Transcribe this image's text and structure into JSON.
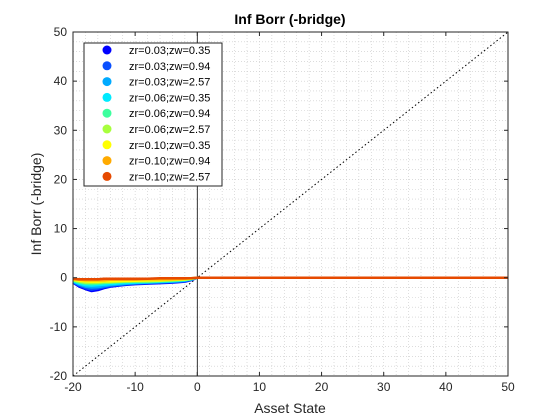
{
  "chart_data": {
    "type": "line",
    "title": "Inf Borr (-bridge)",
    "xlabel": "Asset State",
    "ylabel": "Inf Borr (-bridge)",
    "xlim": [
      -20,
      50
    ],
    "ylim": [
      -20,
      50
    ],
    "xticks": [
      -20,
      -10,
      0,
      10,
      20,
      30,
      40,
      50
    ],
    "yticks": [
      -20,
      -10,
      0,
      10,
      20,
      30,
      40,
      50
    ],
    "grid": "minor dotted",
    "legend_position": "top-left",
    "reference_lines": {
      "diagonal": "y = x (dotted)",
      "vertical": "x = 0 (solid)"
    },
    "series": [
      {
        "name": "zr=0.03;zw=0.35",
        "color": "#0000ff",
        "x": [
          -20,
          -19,
          -18,
          -17,
          -16,
          -15,
          -14,
          -12,
          -10,
          -8,
          -6,
          -4,
          -2,
          -1,
          0,
          10,
          20,
          30,
          40,
          50
        ],
        "y": [
          -1.0,
          -1.8,
          -2.3,
          -2.7,
          -2.5,
          -2.1,
          -1.8,
          -1.5,
          -1.3,
          -1.2,
          -1.1,
          -1.0,
          -0.8,
          -0.5,
          0,
          0,
          0,
          0,
          0,
          0
        ]
      },
      {
        "name": "zr=0.03;zw=0.94",
        "color": "#0a50ff",
        "x": [
          -20,
          -19,
          -18,
          -17,
          -16,
          -15,
          -14,
          -12,
          -10,
          -8,
          -6,
          -4,
          -2,
          -1,
          0,
          10,
          20,
          30,
          40,
          50
        ],
        "y": [
          -0.9,
          -1.6,
          -2.1,
          -2.4,
          -2.2,
          -1.9,
          -1.7,
          -1.4,
          -1.2,
          -1.1,
          -1.0,
          -0.9,
          -0.7,
          -0.4,
          0,
          0,
          0,
          0,
          0,
          0
        ]
      },
      {
        "name": "zr=0.03;zw=2.57",
        "color": "#00aaff",
        "x": [
          -20,
          -19,
          -18,
          -17,
          -16,
          -15,
          -14,
          -12,
          -10,
          -8,
          -6,
          -4,
          -2,
          -1,
          0,
          10,
          20,
          30,
          40,
          50
        ],
        "y": [
          -0.8,
          -1.4,
          -1.8,
          -2.0,
          -1.9,
          -1.7,
          -1.5,
          -1.3,
          -1.1,
          -1.0,
          -0.9,
          -0.8,
          -0.6,
          -0.4,
          0,
          0,
          0,
          0,
          0,
          0
        ]
      },
      {
        "name": "zr=0.06;zw=0.35",
        "color": "#00eaff",
        "x": [
          -20,
          -19,
          -18,
          -17,
          -16,
          -15,
          -14,
          -12,
          -10,
          -8,
          -6,
          -4,
          -2,
          -1,
          0,
          10,
          20,
          30,
          40,
          50
        ],
        "y": [
          -0.7,
          -1.2,
          -1.5,
          -1.6,
          -1.5,
          -1.4,
          -1.3,
          -1.1,
          -1.0,
          -0.9,
          -0.8,
          -0.7,
          -0.5,
          -0.3,
          0,
          0,
          0,
          0,
          0,
          0
        ]
      },
      {
        "name": "zr=0.06;zw=0.94",
        "color": "#3dff9e",
        "x": [
          -20,
          -19,
          -18,
          -17,
          -16,
          -15,
          -14,
          -12,
          -10,
          -8,
          -6,
          -4,
          -2,
          -1,
          0,
          10,
          20,
          30,
          40,
          50
        ],
        "y": [
          -0.6,
          -1.0,
          -1.2,
          -1.3,
          -1.2,
          -1.1,
          -1.0,
          -0.9,
          -0.8,
          -0.8,
          -0.7,
          -0.6,
          -0.4,
          -0.3,
          0,
          0,
          0,
          0,
          0,
          0
        ]
      },
      {
        "name": "zr=0.06;zw=2.57",
        "color": "#a8ff3d",
        "x": [
          -20,
          -19,
          -18,
          -17,
          -16,
          -15,
          -14,
          -12,
          -10,
          -8,
          -6,
          -4,
          -2,
          -1,
          0,
          10,
          20,
          30,
          40,
          50
        ],
        "y": [
          -0.5,
          -0.8,
          -1.0,
          -1.0,
          -1.0,
          -0.9,
          -0.9,
          -0.8,
          -0.7,
          -0.7,
          -0.6,
          -0.5,
          -0.4,
          -0.2,
          0,
          0,
          0,
          0,
          0,
          0
        ]
      },
      {
        "name": "zr=0.10;zw=0.35",
        "color": "#ffff00",
        "x": [
          -20,
          -19,
          -18,
          -17,
          -16,
          -15,
          -14,
          -12,
          -10,
          -8,
          -6,
          -4,
          -2,
          -1,
          0,
          10,
          20,
          30,
          40,
          50
        ],
        "y": [
          -0.4,
          -0.6,
          -0.7,
          -0.8,
          -0.8,
          -0.7,
          -0.7,
          -0.6,
          -0.6,
          -0.5,
          -0.5,
          -0.4,
          -0.3,
          -0.2,
          0,
          0,
          0,
          0,
          0,
          0
        ]
      },
      {
        "name": "zr=0.10;zw=0.94",
        "color": "#ffaa00",
        "x": [
          -20,
          -19,
          -18,
          -17,
          -16,
          -15,
          -14,
          -12,
          -10,
          -8,
          -6,
          -4,
          -2,
          -1,
          0,
          10,
          20,
          30,
          40,
          50
        ],
        "y": [
          -0.3,
          -0.4,
          -0.5,
          -0.5,
          -0.5,
          -0.5,
          -0.4,
          -0.4,
          -0.4,
          -0.3,
          -0.3,
          -0.3,
          -0.2,
          -0.1,
          0,
          0,
          0,
          0,
          0,
          0
        ]
      },
      {
        "name": "zr=0.10;zw=2.57",
        "color": "#e64a00",
        "x": [
          -20,
          -19,
          -18,
          -17,
          -16,
          -15,
          -14,
          -12,
          -10,
          -8,
          -6,
          -4,
          -2,
          -1,
          0,
          10,
          20,
          30,
          40,
          50
        ],
        "y": [
          -0.2,
          -0.3,
          -0.3,
          -0.3,
          -0.3,
          -0.2,
          -0.2,
          -0.2,
          -0.2,
          -0.2,
          -0.1,
          -0.1,
          -0.1,
          -0.1,
          0,
          0,
          0,
          0,
          0,
          0
        ]
      }
    ]
  }
}
